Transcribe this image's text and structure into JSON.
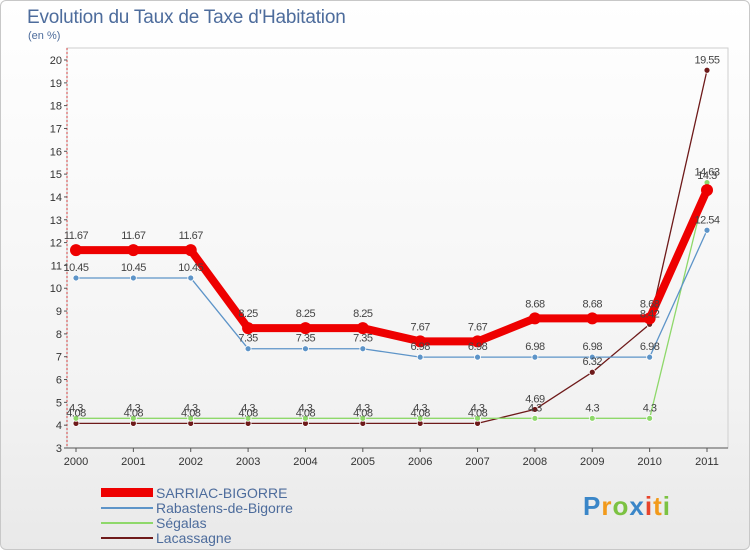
{
  "header": {
    "title": "Evolution du Taux de Taxe d'Habitation",
    "unit": "(en %)"
  },
  "chart_data": {
    "type": "line",
    "title": "Evolution du Taux de Taxe d'Habitation",
    "ylabel": "(en %)",
    "xlabel": "",
    "ylim": [
      3,
      20
    ],
    "y_ticks": [
      3,
      4,
      5,
      6,
      7,
      8,
      9,
      10,
      11,
      12,
      13,
      14,
      15,
      16,
      17,
      18,
      19,
      20
    ],
    "grid": false,
    "categories": [
      "2000",
      "2001",
      "2002",
      "2003",
      "2004",
      "2005",
      "2006",
      "2007",
      "2008",
      "2009",
      "2010",
      "2011"
    ],
    "series": [
      {
        "name": "Lacassagne",
        "color": "#6e1a1a",
        "values": [
          4.08,
          4.08,
          4.08,
          4.08,
          4.08,
          4.08,
          4.08,
          4.08,
          4.69,
          6.32,
          8.42,
          19.55
        ],
        "labels": [
          "4.08",
          "4.08",
          "4.08",
          "4.08",
          "4.08",
          "4.08",
          "4.08",
          "4.08",
          "4.69",
          "6.32",
          "8.42",
          "19.55"
        ]
      },
      {
        "name": "Ségalas",
        "color": "#8ed86a",
        "values": [
          4.3,
          4.3,
          4.3,
          4.3,
          4.3,
          4.3,
          4.3,
          4.3,
          4.3,
          4.3,
          4.3,
          14.63
        ],
        "labels": [
          "4.3",
          "4.3",
          "4.3",
          "4.3",
          "4.3",
          "4.3",
          "4.3",
          "4.3",
          "4.3",
          "4.3",
          "4.3",
          "14.63"
        ]
      },
      {
        "name": "Rabastens-de-Bigorre",
        "color": "#5d94c8",
        "values": [
          10.45,
          10.45,
          10.45,
          7.35,
          7.35,
          7.35,
          6.98,
          6.98,
          6.98,
          6.98,
          6.98,
          12.54
        ],
        "labels": [
          "10.45",
          "10.45",
          "10.45",
          "7.35",
          "7.35",
          "7.35",
          "6.98",
          "6.98",
          "6.98",
          "6.98",
          "6.98",
          "12.54"
        ]
      },
      {
        "name": "SARRIAC-BIGORRE",
        "color": "#ee0000",
        "values": [
          11.67,
          11.67,
          11.67,
          8.25,
          8.25,
          8.25,
          7.67,
          7.67,
          8.68,
          8.68,
          8.68,
          14.3
        ],
        "labels": [
          "11.67",
          "11.67",
          "11.67",
          "8.25",
          "8.25",
          "8.25",
          "7.67",
          "7.67",
          "8.68",
          "8.68",
          "8.68",
          "14.3"
        ]
      }
    ],
    "legend": [
      "SARRIAC-BIGORRE",
      "Rabastens-de-Bigorre",
      "Ségalas",
      "Lacassagne"
    ],
    "legend_placement": "bottom-left"
  },
  "brand": {
    "letters": [
      "P",
      "r",
      "o",
      "x",
      "i",
      "t",
      "i"
    ],
    "colors": [
      "#3a86c8",
      "#f29a1b",
      "#7cc242",
      "#3a86c8",
      "#e8442c",
      "#f29a1b",
      "#7cc242"
    ]
  }
}
